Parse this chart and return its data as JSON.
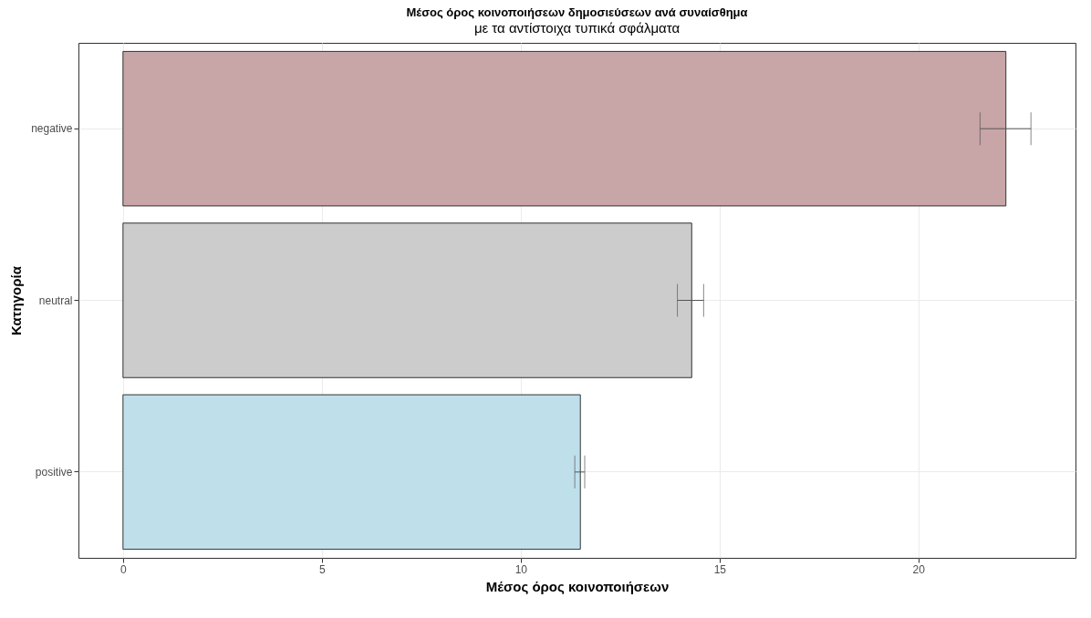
{
  "chart_data": {
    "type": "bar",
    "orientation": "horizontal",
    "title": "Μέσος όρος κοινοποιήσεων δημοσιεύσεων ανά συναίσθημα",
    "subtitle": "με τα αντίστοιχα τυπικά σφάλματα",
    "xlabel": "Μέσος όρος κοινοποιήσεων",
    "ylabel": "Κατηγορία",
    "categories": [
      "negative",
      "neutral",
      "positive"
    ],
    "values": [
      22.2,
      14.3,
      11.5
    ],
    "colors": [
      "#c8a5a6",
      "#cccccc",
      "#bfe0ea"
    ],
    "errors": [
      [
        21.55,
        22.83
      ],
      [
        13.94,
        14.6
      ],
      [
        11.36,
        11.61
      ]
    ],
    "xlim": [
      -1.12,
      23.95
    ],
    "xticks": [
      0,
      5,
      10,
      15,
      20
    ],
    "grid": true
  }
}
